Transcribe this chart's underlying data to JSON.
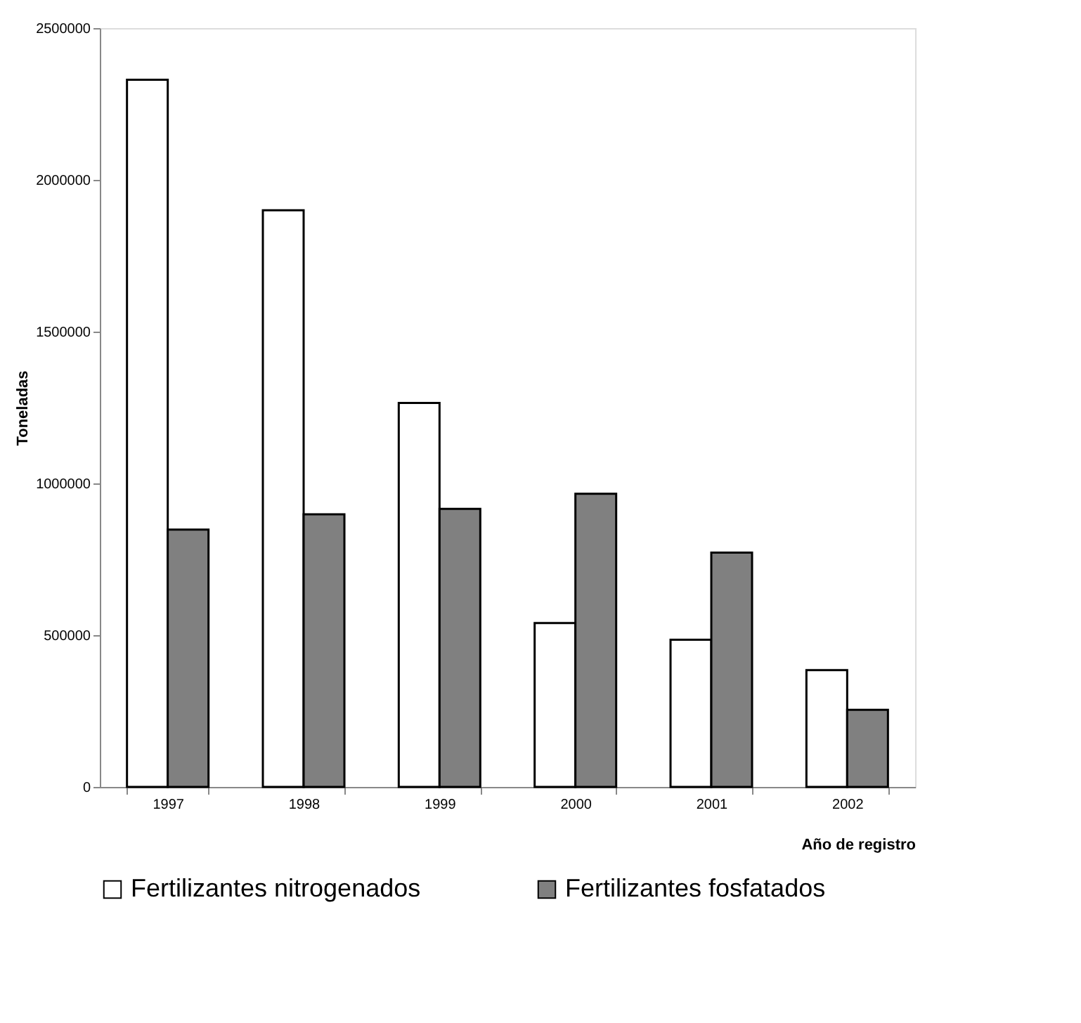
{
  "chart_data": {
    "type": "bar",
    "xlabel": "Año de registro",
    "ylabel": "Toneladas",
    "categories": [
      "1997",
      "1998",
      "1999",
      "2000",
      "2001",
      "2002"
    ],
    "series": [
      {
        "name": "Fertilizantes nitrogenados",
        "color": "#ffffff",
        "values": [
          2330000,
          1900000,
          1265000,
          540000,
          485000,
          385000
        ]
      },
      {
        "name": "Fertilizantes fosfatados",
        "color": "#808080",
        "values": [
          848000,
          898000,
          916000,
          966000,
          772000,
          254000
        ]
      }
    ],
    "ylim": [
      0,
      2500000
    ],
    "yticks": [
      0,
      500000,
      1000000,
      1500000,
      2000000,
      2500000
    ],
    "grid": false,
    "legend": "bottom"
  }
}
